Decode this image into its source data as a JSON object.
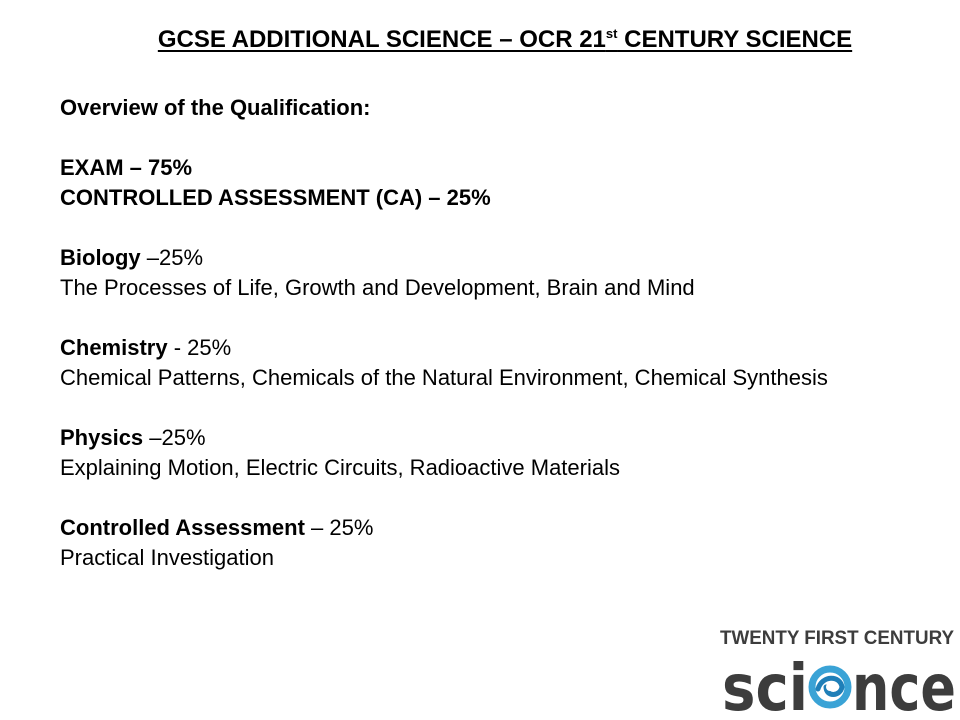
{
  "title": {
    "main": "GCSE ADDITIONAL SCIENCE – OCR 21",
    "sup": "st",
    "tail": " CENTURY SCIENCE"
  },
  "overview": "Overview of the Qualification:",
  "exam_line": "EXAM – 75%",
  "ca_line": "CONTROLLED ASSESSMENT (CA) – 25%",
  "sections": [
    {
      "name": "Biology",
      "weight": " –25%",
      "desc": "The Processes of Life, Growth and Development, Brain and Mind"
    },
    {
      "name": "Chemistry",
      "weight": " - 25%",
      "desc": "Chemical Patterns, Chemicals of the Natural Environment, Chemical Synthesis"
    },
    {
      "name": "Physics",
      "weight": " –25%",
      "desc": "Explaining Motion, Electric Circuits, Radioactive Materials"
    },
    {
      "name": "Controlled Assessment",
      "weight": " – 25%",
      "desc": "Practical Investigation"
    }
  ],
  "logo": {
    "top_text": "TWENTY FIRST CENTURY",
    "word_left": "sci",
    "word_right": "nce",
    "colors": {
      "text": "#3d3d3d",
      "swirl": "#3aa3d6"
    }
  }
}
